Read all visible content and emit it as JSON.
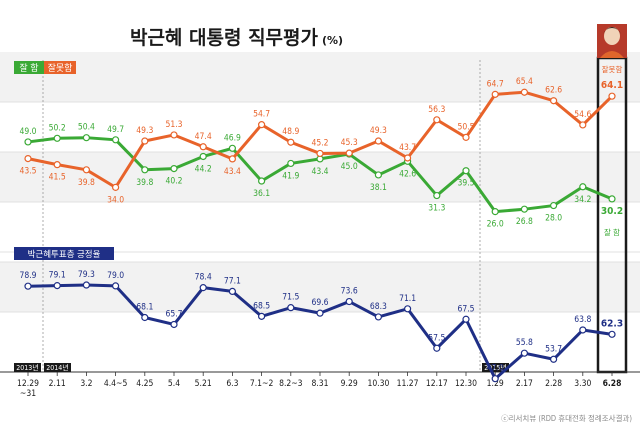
{
  "title": "박근혜 대통령 직무평가",
  "title_unit": "(%)",
  "legend": {
    "approve": "잘 함",
    "disapprove": "잘못함",
    "turnout": "박근혜투표층 긍정율"
  },
  "end_labels": {
    "approve": "잘 함",
    "disapprove": "잘못함"
  },
  "year_labels": [
    "2013년",
    "2014년",
    "2015년"
  ],
  "source": "ⓒ리서치뷰 (RDD 휴대전화 정례조사결과)",
  "colors": {
    "approve": "#3aa935",
    "disapprove": "#e8632a",
    "turnout": "#1f2f86",
    "band": "#f2f2f2",
    "highlight": "#1a1a1a"
  },
  "chart_data": {
    "type": "line",
    "categories": [
      "12.29\n~31",
      "2.11",
      "3.2",
      "4.4~5",
      "4.25",
      "5.4",
      "5.21",
      "6.3",
      "7.1~2",
      "8.2~3",
      "8.31",
      "9.29",
      "10.30",
      "11.27",
      "12.17",
      "12.30",
      "1.29",
      "2.17",
      "2.28",
      "3.30",
      "6.28"
    ],
    "series": [
      {
        "name": "잘 함",
        "values": [
          49.0,
          50.2,
          50.4,
          49.7,
          39.8,
          40.2,
          44.2,
          46.9,
          36.1,
          41.9,
          43.4,
          45.0,
          38.1,
          42.6,
          31.3,
          39.5,
          26.0,
          26.8,
          28.0,
          34.2,
          30.2
        ]
      },
      {
        "name": "잘못함",
        "values": [
          43.5,
          41.5,
          39.8,
          34.0,
          49.3,
          51.3,
          47.4,
          43.4,
          54.7,
          48.9,
          45.2,
          45.3,
          49.3,
          43.7,
          56.3,
          50.5,
          64.7,
          65.4,
          62.6,
          54.6,
          64.1
        ]
      },
      {
        "name": "박근혜투표층 긍정율",
        "values": [
          78.9,
          79.1,
          79.3,
          79.0,
          68.1,
          65.7,
          78.4,
          77.1,
          68.5,
          71.5,
          69.6,
          73.6,
          68.3,
          71.1,
          57.5,
          67.5,
          47.0,
          55.8,
          53.7,
          63.8,
          62.3
        ]
      }
    ]
  }
}
